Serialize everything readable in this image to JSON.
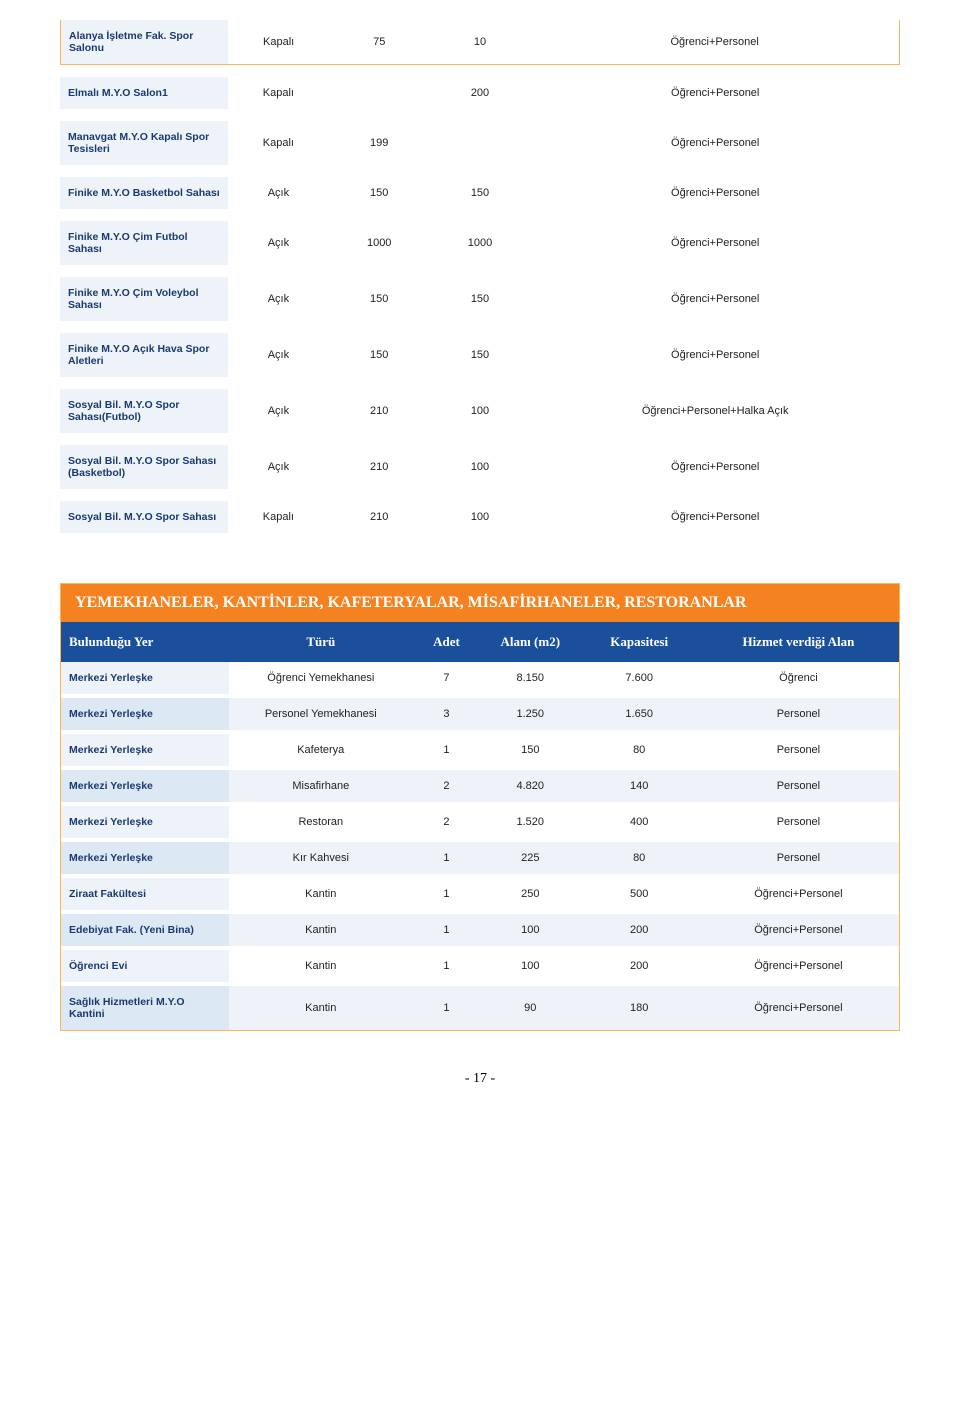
{
  "facilities": [
    {
      "name": "Alanya İşletme Fak. Spor Salonu",
      "status": "Kapalı",
      "v1": "75",
      "v2": "10",
      "scope": "Öğrenci+Personel"
    },
    {
      "name": "Elmalı M.Y.O Salon1",
      "status": "Kapalı",
      "v1": "",
      "v2": "200",
      "scope": "Öğrenci+Personel"
    },
    {
      "name": "Manavgat M.Y.O Kapalı Spor Tesisleri",
      "status": "Kapalı",
      "v1": "199",
      "v2": "",
      "scope": "Öğrenci+Personel"
    },
    {
      "name": "Finike M.Y.O Basketbol Sahası",
      "status": "Açık",
      "v1": "150",
      "v2": "150",
      "scope": "Öğrenci+Personel"
    },
    {
      "name": "Finike M.Y.O Çim Futbol Sahası",
      "status": "Açık",
      "v1": "1000",
      "v2": "1000",
      "scope": "Öğrenci+Personel"
    },
    {
      "name": "Finike M.Y.O Çim Voleybol Sahası",
      "status": "Açık",
      "v1": "150",
      "v2": "150",
      "scope": "Öğrenci+Personel"
    },
    {
      "name": "Finike M.Y.O Açık Hava Spor Aletleri",
      "status": "Açık",
      "v1": "150",
      "v2": "150",
      "scope": "Öğrenci+Personel"
    },
    {
      "name": "Sosyal Bil. M.Y.O Spor Sahası(Futbol)",
      "status": "Açık",
      "v1": "210",
      "v2": "100",
      "scope": "Öğrenci+Personel+Halka Açık"
    },
    {
      "name": "Sosyal Bil. M.Y.O Spor Sahası (Basketbol)",
      "status": "Açık",
      "v1": "210",
      "v2": "100",
      "scope": "Öğrenci+Personel"
    },
    {
      "name": "Sosyal Bil. M.Y.O Spor Sahası",
      "status": "Kapalı",
      "v1": "210",
      "v2": "100",
      "scope": "Öğrenci+Personel"
    }
  ],
  "section2": {
    "title": "YEMEKHANELER, KANTİNLER, KAFETERYALAR, MİSAFİRHANELER, RESTORANLAR",
    "headers": {
      "loc": "Bulunduğu Yer",
      "type": "Türü",
      "count": "Adet",
      "area": "Alanı (m2)",
      "cap": "Kapasitesi",
      "serve": "Hizmet verdiği Alan"
    },
    "rows": [
      {
        "loc": "Merkezi Yerleşke",
        "type": "Öğrenci Yemekhanesi",
        "count": "7",
        "area": "8.150",
        "cap": "7.600",
        "serve": "Öğrenci"
      },
      {
        "loc": "Merkezi Yerleşke",
        "type": "Personel Yemekhanesi",
        "count": "3",
        "area": "1.250",
        "cap": "1.650",
        "serve": "Personel"
      },
      {
        "loc": "Merkezi Yerleşke",
        "type": "Kafeterya",
        "count": "1",
        "area": "150",
        "cap": "80",
        "serve": "Personel"
      },
      {
        "loc": "Merkezi Yerleşke",
        "type": "Misafirhane",
        "count": "2",
        "area": "4.820",
        "cap": "140",
        "serve": "Personel"
      },
      {
        "loc": "Merkezi Yerleşke",
        "type": "Restoran",
        "count": "2",
        "area": "1.520",
        "cap": "400",
        "serve": "Personel"
      },
      {
        "loc": "Merkezi Yerleşke",
        "type": "Kır Kahvesi",
        "count": "1",
        "area": "225",
        "cap": "80",
        "serve": "Personel"
      },
      {
        "loc": "Ziraat Fakültesi",
        "type": "Kantin",
        "count": "1",
        "area": "250",
        "cap": "500",
        "serve": "Öğrenci+Personel"
      },
      {
        "loc": "Edebiyat Fak. (Yeni Bina)",
        "type": "Kantin",
        "count": "1",
        "area": "100",
        "cap": "200",
        "serve": "Öğrenci+Personel"
      },
      {
        "loc": "Öğrenci Evi",
        "type": "Kantin",
        "count": "1",
        "area": "100",
        "cap": "200",
        "serve": "Öğrenci+Personel"
      },
      {
        "loc": "Sağlık Hizmetleri M.Y.O Kantini",
        "type": "Kantin",
        "count": "1",
        "area": "90",
        "cap": "180",
        "serve": "Öğrenci+Personel"
      }
    ]
  },
  "page_number": "- 17 -"
}
